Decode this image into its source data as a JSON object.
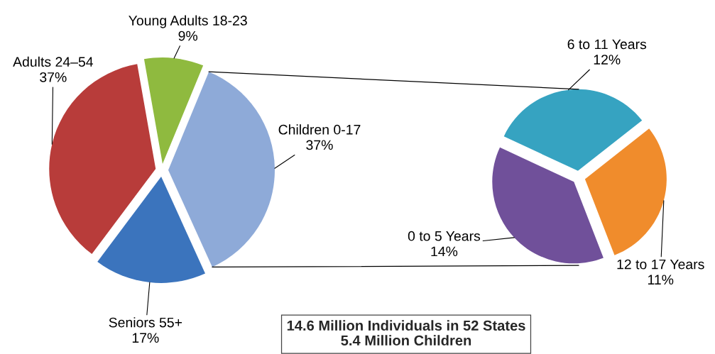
{
  "chart_data": [
    {
      "type": "pie",
      "categories": [
        "Young Adults 18-23",
        "Children 0-17",
        "Seniors 55+",
        "Adults 24–54"
      ],
      "values": [
        9,
        37,
        17,
        37
      ],
      "value_labels": [
        "9%",
        "37%",
        "17%",
        "37%"
      ],
      "colors": [
        "#8fba3f",
        "#8eaad8",
        "#3b74bd",
        "#b83c3a"
      ],
      "annotations": [
        "14.6 Million Individuals in 52 States",
        "5.4 Million Children"
      ]
    },
    {
      "type": "pie",
      "categories": [
        "6 to 11 Years",
        "12 to 17 Years",
        "0 to 5 Years"
      ],
      "values": [
        12,
        11,
        14
      ],
      "value_labels": [
        "12%",
        "11%",
        "14%"
      ],
      "colors": [
        "#36a3c1",
        "#f08c2c",
        "#70509a"
      ]
    }
  ]
}
